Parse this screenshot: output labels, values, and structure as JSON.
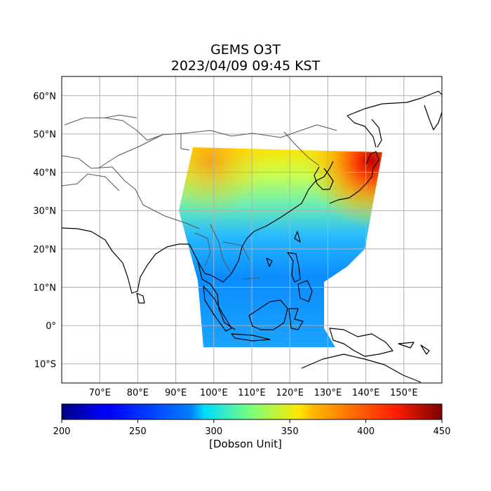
{
  "map": {
    "title_line1": "GEMS O3T",
    "title_line2": "2023/04/09 09:45 KST",
    "lon_range": [
      60,
      160
    ],
    "lat_range": [
      -15,
      65
    ],
    "lat_ticks": [
      {
        "value": 60,
        "label": "60°N"
      },
      {
        "value": 50,
        "label": "50°N"
      },
      {
        "value": 40,
        "label": "40°N"
      },
      {
        "value": 30,
        "label": "30°N"
      },
      {
        "value": 20,
        "label": "20°N"
      },
      {
        "value": 10,
        "label": "10°N"
      },
      {
        "value": 0,
        "label": "0°"
      },
      {
        "value": -10,
        "label": "10°S"
      }
    ],
    "lon_ticks": [
      {
        "value": 70,
        "label": "70°E"
      },
      {
        "value": 80,
        "label": "80°E"
      },
      {
        "value": 90,
        "label": "90°E"
      },
      {
        "value": 100,
        "label": "100°E"
      },
      {
        "value": 110,
        "label": "110°E"
      },
      {
        "value": 120,
        "label": "120°E"
      },
      {
        "value": 130,
        "label": "130°E"
      },
      {
        "value": 140,
        "label": "140°E"
      },
      {
        "value": 150,
        "label": "150°E"
      }
    ],
    "grid": true
  },
  "colorbar": {
    "label": "[Dobson Unit]",
    "min": 200,
    "max": 450,
    "ticks": [
      "200",
      "250",
      "300",
      "350",
      "400",
      "450"
    ],
    "colormap": "jet"
  }
}
